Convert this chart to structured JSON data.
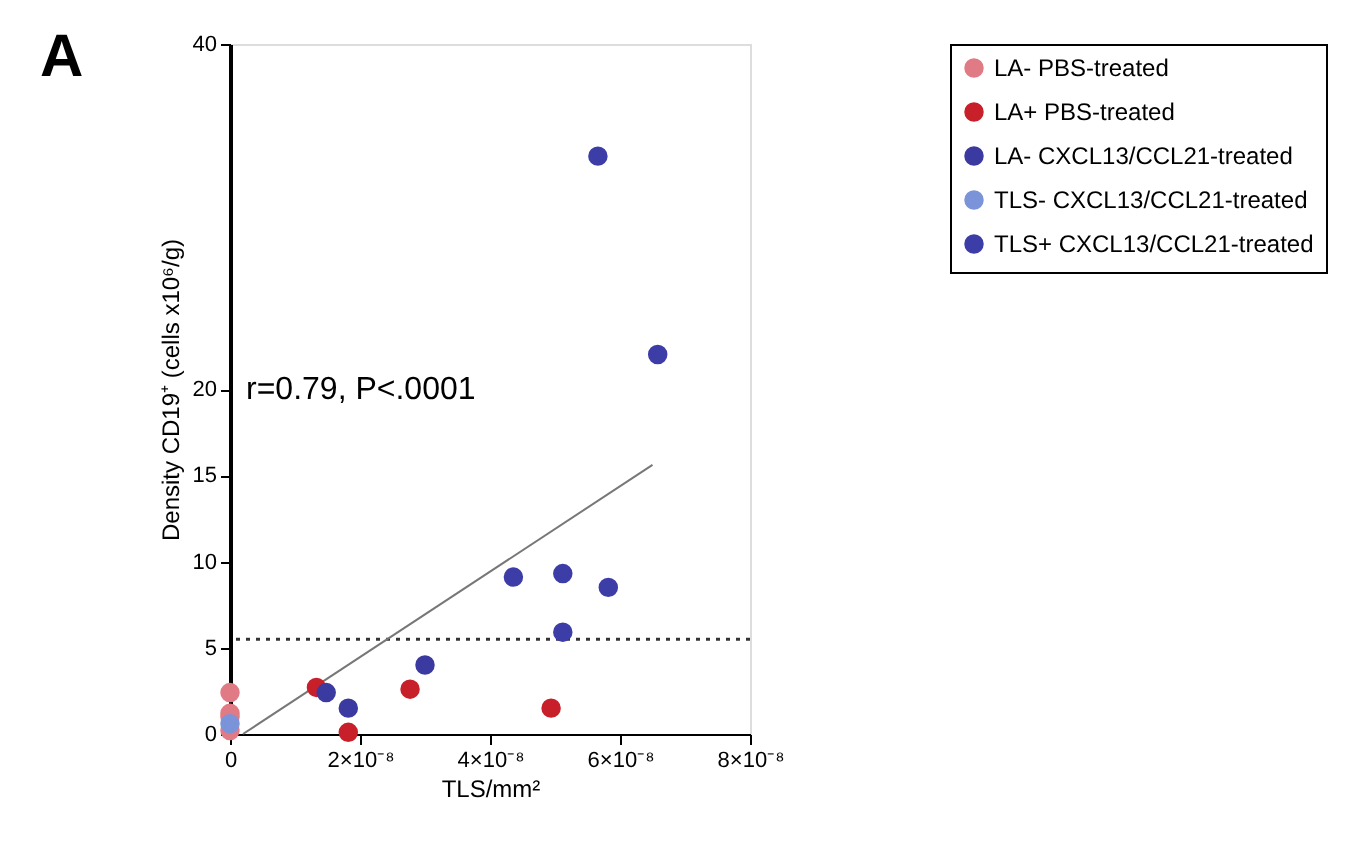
{
  "chart_data": {
    "type": "scatter",
    "xlabel": "TLS/mm²",
    "ylabel": "Density CD19⁺ (cells x10⁶/g)",
    "annotations": [
      "A",
      "r=0.79, P<.0001"
    ],
    "xlim": [
      0,
      8e-08
    ],
    "ylim": [
      0,
      40
    ],
    "yticks": [
      0,
      5,
      10,
      15,
      20,
      40
    ],
    "xticks": [
      {
        "value": 0,
        "label": "0"
      },
      {
        "value": 2e-08,
        "label": "2×10⁻⁸"
      },
      {
        "value": 4e-08,
        "label": "4×10⁻⁸"
      },
      {
        "value": 6e-08,
        "label": "6×10⁻⁸"
      },
      {
        "value": 8e-08,
        "label": "8×10⁻⁸"
      }
    ],
    "marker": "circle",
    "legend": "top right",
    "ref_lines": [
      {
        "axis": "y",
        "value": 5.5,
        "line_style": "dotted",
        "color": "#333333"
      }
    ],
    "series": [
      {
        "name": "LA- PBS-treated",
        "color": "#e07b85",
        "x": [
          0,
          0,
          0,
          0
        ],
        "values": [
          2.4,
          1.2,
          1.0,
          0.2
        ]
      },
      {
        "name": "LA+ PBS-treated",
        "color": "#c8202a",
        "x": [
          1.33e-08,
          1.82e-08,
          2.77e-08,
          4.94e-08
        ],
        "values": [
          2.7,
          0.1,
          2.6,
          1.5
        ]
      },
      {
        "name": "LA- CXCL13/CCL21-treated",
        "color": "#3a3aa0",
        "x": [
          1.48e-08,
          1.82e-08,
          3e-08
        ],
        "values": [
          2.4,
          1.5,
          4.0
        ]
      },
      {
        "name": "TLS- CXCL13/CCL21-treated",
        "color": "#7b93d8",
        "x": [
          0
        ],
        "values": [
          0.6
        ]
      },
      {
        "name": "TLS+ CXCL13/CCL21-treated",
        "color": "#3d3da8",
        "x": [
          4.36e-08,
          5.12e-08,
          5.82e-08,
          5.12e-08,
          5.66e-08,
          6.58e-08
        ],
        "values": [
          9.1,
          9.3,
          8.5,
          5.9,
          33.5,
          22
        ]
      },
      {
        "type": "line",
        "marker": "none",
        "color": "#777777",
        "x": [
          2e-09,
          6.5e-08
        ],
        "values": [
          0,
          15.6
        ]
      }
    ]
  }
}
